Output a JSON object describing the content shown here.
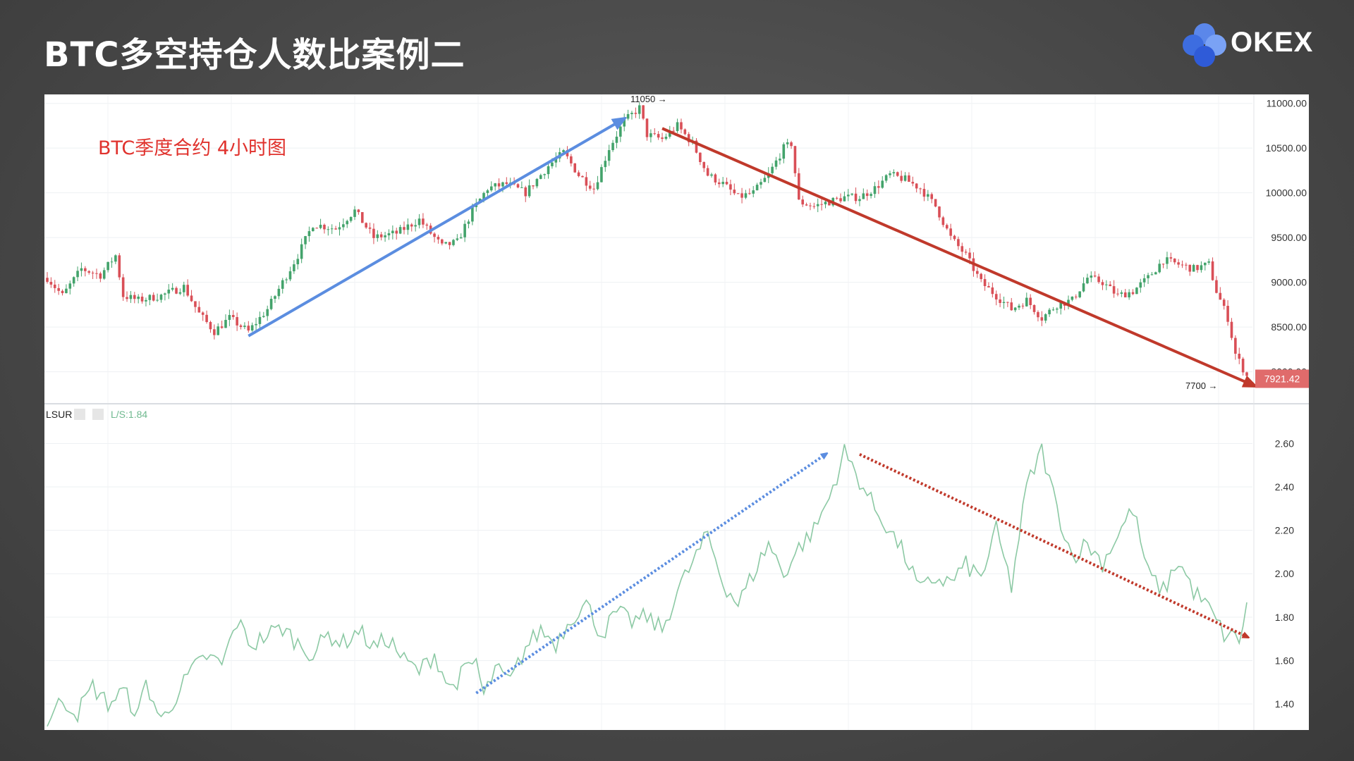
{
  "slide": {
    "title": "BTC多空持仓人数比案例二"
  },
  "brand": {
    "name": "OKEX",
    "colors": [
      "#4f7de8",
      "#2f5bd8",
      "#6e9af5",
      "#3c68e0"
    ]
  },
  "colors": {
    "price_up": "#43a36b",
    "price_down": "#d94f57",
    "lsur_line": "#8cc9a4",
    "blue_trend": "#5b8de0",
    "red_trend": "#c0392b",
    "price_badge": "#e06b6b"
  },
  "chart_data": [
    {
      "type": "candlestick",
      "title": "",
      "annotation": "BTC季度合约  4小时图",
      "y_axis": {
        "side": "right",
        "ticks": [
          "11000.00",
          "10500.00",
          "10000.00",
          "9500.00",
          "9000.00",
          "8500.00",
          "8000.00"
        ],
        "ylim": [
          7650,
          11100
        ]
      },
      "last_price": "7921.42",
      "high_marker": "11050 →",
      "low_marker": "7700 →",
      "close_path": [
        [
          0,
          9050
        ],
        [
          4,
          8850
        ],
        [
          9,
          9150
        ],
        [
          14,
          9080
        ],
        [
          18,
          9300
        ],
        [
          20,
          8850
        ],
        [
          24,
          8800
        ],
        [
          30,
          8850
        ],
        [
          36,
          8950
        ],
        [
          40,
          8650
        ],
        [
          44,
          8450
        ],
        [
          48,
          8600
        ],
        [
          53,
          8450
        ],
        [
          58,
          8700
        ],
        [
          62,
          9000
        ],
        [
          66,
          9300
        ],
        [
          70,
          9650
        ],
        [
          76,
          9600
        ],
        [
          81,
          9800
        ],
        [
          86,
          9500
        ],
        [
          92,
          9550
        ],
        [
          98,
          9700
        ],
        [
          104,
          9400
        ],
        [
          108,
          9450
        ],
        [
          112,
          9800
        ],
        [
          116,
          10050
        ],
        [
          121,
          10100
        ],
        [
          126,
          10000
        ],
        [
          132,
          10300
        ],
        [
          136,
          10450
        ],
        [
          140,
          10200
        ],
        [
          144,
          10050
        ],
        [
          148,
          10500
        ],
        [
          152,
          10800
        ],
        [
          156,
          10950
        ],
        [
          158,
          10650
        ],
        [
          162,
          10600
        ],
        [
          166,
          10750
        ],
        [
          170,
          10550
        ],
        [
          174,
          10200
        ],
        [
          178,
          10100
        ],
        [
          182,
          9950
        ],
        [
          186,
          10000
        ],
        [
          190,
          10200
        ],
        [
          194,
          10500
        ],
        [
          196,
          10550
        ],
        [
          198,
          9900
        ],
        [
          202,
          9850
        ],
        [
          206,
          9900
        ],
        [
          210,
          9950
        ],
        [
          214,
          9950
        ],
        [
          218,
          10050
        ],
        [
          222,
          10200
        ],
        [
          226,
          10150
        ],
        [
          230,
          10050
        ],
        [
          234,
          9850
        ],
        [
          238,
          9500
        ],
        [
          242,
          9300
        ],
        [
          246,
          9000
        ],
        [
          250,
          8850
        ],
        [
          254,
          8700
        ],
        [
          258,
          8800
        ],
        [
          262,
          8600
        ],
        [
          266,
          8750
        ],
        [
          270,
          8800
        ],
        [
          274,
          9050
        ],
        [
          278,
          9000
        ],
        [
          282,
          8850
        ],
        [
          286,
          8900
        ],
        [
          290,
          9050
        ],
        [
          294,
          9250
        ],
        [
          298,
          9200
        ],
        [
          302,
          9150
        ],
        [
          306,
          9200
        ],
        [
          308,
          8900
        ],
        [
          311,
          8600
        ],
        [
          313,
          8200
        ],
        [
          316,
          7950
        ]
      ]
    },
    {
      "type": "line",
      "title": "",
      "indicator": {
        "name": "LSUR",
        "legend": "L/S:1.84"
      },
      "y_axis": {
        "side": "right",
        "ticks": [
          "2.60",
          "2.40",
          "2.20",
          "2.00",
          "1.80",
          "1.60",
          "1.40"
        ],
        "ylim": [
          1.28,
          2.78
        ]
      },
      "path": [
        [
          0,
          1.32
        ],
        [
          4,
          1.42
        ],
        [
          8,
          1.36
        ],
        [
          12,
          1.48
        ],
        [
          16,
          1.4
        ],
        [
          20,
          1.46
        ],
        [
          24,
          1.35
        ],
        [
          26,
          1.5
        ],
        [
          30,
          1.32
        ],
        [
          34,
          1.44
        ],
        [
          38,
          1.55
        ],
        [
          42,
          1.62
        ],
        [
          46,
          1.58
        ],
        [
          50,
          1.78
        ],
        [
          54,
          1.67
        ],
        [
          58,
          1.72
        ],
        [
          62,
          1.75
        ],
        [
          66,
          1.68
        ],
        [
          70,
          1.63
        ],
        [
          74,
          1.72
        ],
        [
          78,
          1.68
        ],
        [
          82,
          1.74
        ],
        [
          86,
          1.66
        ],
        [
          90,
          1.7
        ],
        [
          94,
          1.6
        ],
        [
          98,
          1.55
        ],
        [
          102,
          1.63
        ],
        [
          106,
          1.47
        ],
        [
          110,
          1.55
        ],
        [
          113,
          1.6
        ],
        [
          115,
          1.43
        ],
        [
          118,
          1.56
        ],
        [
          122,
          1.5
        ],
        [
          126,
          1.66
        ],
        [
          130,
          1.74
        ],
        [
          134,
          1.68
        ],
        [
          138,
          1.8
        ],
        [
          142,
          1.86
        ],
        [
          146,
          1.72
        ],
        [
          150,
          1.82
        ],
        [
          154,
          1.78
        ],
        [
          158,
          1.8
        ],
        [
          162,
          1.74
        ],
        [
          166,
          1.92
        ],
        [
          170,
          2.05
        ],
        [
          174,
          2.18
        ],
        [
          178,
          1.96
        ],
        [
          182,
          1.86
        ],
        [
          186,
          2.0
        ],
        [
          190,
          2.14
        ],
        [
          194,
          2.0
        ],
        [
          198,
          2.12
        ],
        [
          202,
          2.2
        ],
        [
          206,
          2.35
        ],
        [
          210,
          2.56
        ],
        [
          214,
          2.43
        ],
        [
          218,
          2.3
        ],
        [
          222,
          2.2
        ],
        [
          226,
          2.08
        ],
        [
          230,
          1.92
        ],
        [
          234,
          1.98
        ],
        [
          238,
          1.96
        ],
        [
          242,
          2.04
        ],
        [
          246,
          1.98
        ],
        [
          250,
          2.2
        ],
        [
          254,
          1.94
        ],
        [
          258,
          2.4
        ],
        [
          262,
          2.57
        ],
        [
          266,
          2.3
        ],
        [
          270,
          2.08
        ],
        [
          274,
          2.14
        ],
        [
          278,
          2.05
        ],
        [
          282,
          2.18
        ],
        [
          286,
          2.3
        ],
        [
          290,
          2.0
        ],
        [
          294,
          1.92
        ],
        [
          298,
          2.06
        ],
        [
          302,
          1.92
        ],
        [
          306,
          1.84
        ],
        [
          310,
          1.72
        ],
        [
          314,
          1.7
        ],
        [
          316,
          1.84
        ]
      ]
    }
  ]
}
